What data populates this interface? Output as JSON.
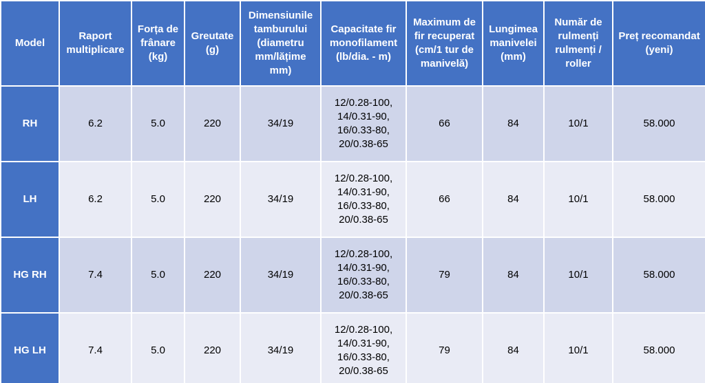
{
  "table": {
    "header": [
      "Model",
      "Raport multiplicare",
      "Forța de frânare (kg)",
      "Greutate (g)",
      "Dimensiunile tamburului (diametru mm/lățime mm)",
      "Capacitate fir monofilament (lb/dia. - m)",
      "Maximum de fir recuperat (cm/1 tur de manivelă)",
      "Lungimea manivelei (mm)",
      "Număr de rulmenți rulmenți / roller",
      "Preț recomandat (yeni)"
    ],
    "rows": [
      [
        "RH",
        "6.2",
        "5.0",
        "220",
        "34/19",
        "12/0.28-100, 14/0.31-90, 16/0.33-80, 20/0.38-65",
        "66",
        "84",
        "10/1",
        "58.000"
      ],
      [
        "LH",
        "6.2",
        "5.0",
        "220",
        "34/19",
        "12/0.28-100, 14/0.31-90, 16/0.33-80, 20/0.38-65",
        "66",
        "84",
        "10/1",
        "58.000"
      ],
      [
        "HG RH",
        "7.4",
        "5.0",
        "220",
        "34/19",
        "12/0.28-100, 14/0.31-90, 16/0.33-80, 20/0.38-65",
        "79",
        "84",
        "10/1",
        "58.000"
      ],
      [
        "HG LH",
        "7.4",
        "5.0",
        "220",
        "34/19",
        "12/0.28-100, 14/0.31-90, 16/0.33-80, 20/0.38-65",
        "79",
        "84",
        "10/1",
        "58.000"
      ]
    ]
  }
}
